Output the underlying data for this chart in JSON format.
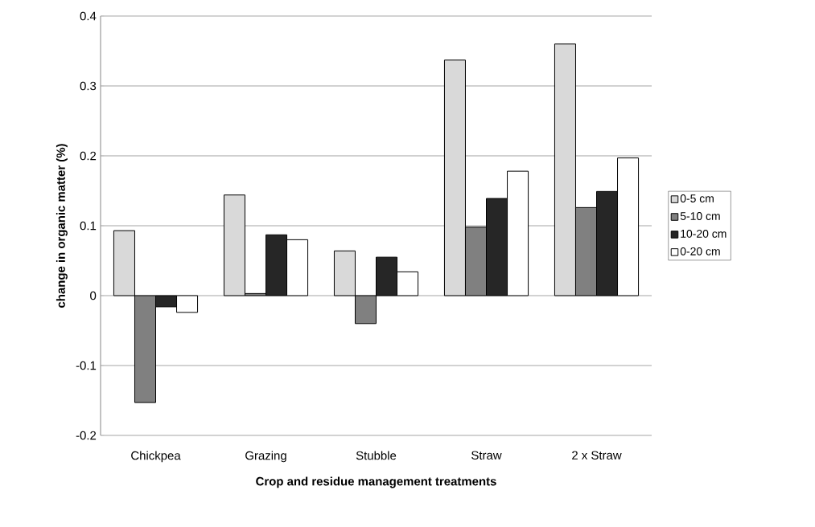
{
  "chart_data": {
    "type": "bar",
    "xlabel": "Crop and residue management treatments",
    "ylabel": "change in organic matter (%)",
    "categories": [
      "Chickpea",
      "Grazing",
      "Stubble",
      "Straw",
      "2 x Straw"
    ],
    "series": [
      {
        "name": "0-5 cm",
        "color": "#d9d9d9",
        "values": [
          0.093,
          0.144,
          0.064,
          0.337,
          0.36
        ]
      },
      {
        "name": "5-10 cm",
        "color": "#808080",
        "values": [
          -0.153,
          0.003,
          -0.04,
          0.098,
          0.126
        ]
      },
      {
        "name": "10-20 cm",
        "color": "#262626",
        "values": [
          -0.016,
          0.087,
          0.055,
          0.139,
          0.149
        ]
      },
      {
        "name": "0-20 cm",
        "color": "#ffffff",
        "values": [
          -0.024,
          0.08,
          0.034,
          0.178,
          0.197
        ]
      }
    ],
    "ylim": [
      -0.2,
      0.4
    ],
    "yticks": [
      -0.2,
      -0.1,
      0,
      0.1,
      0.2,
      0.3,
      0.4
    ],
    "grid": "y",
    "legend": "right"
  }
}
